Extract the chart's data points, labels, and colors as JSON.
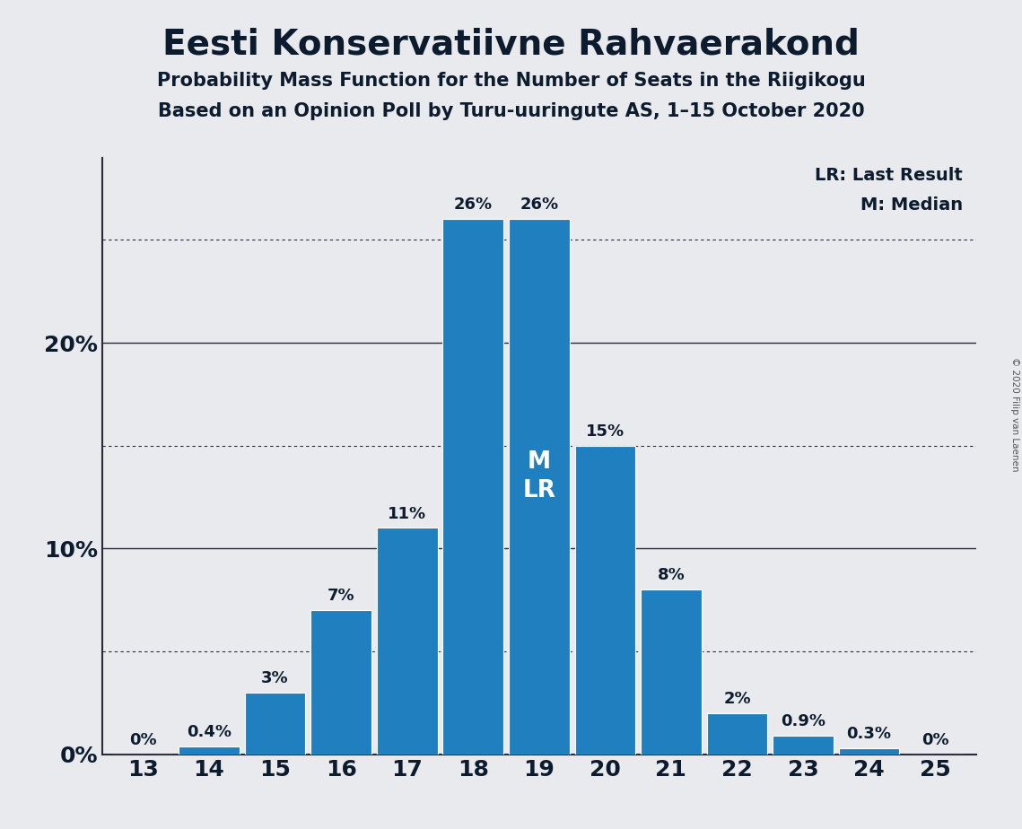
{
  "title": "Eesti Konservatiivne Rahvaerakond",
  "subtitle1": "Probability Mass Function for the Number of Seats in the Riigikogu",
  "subtitle2": "Based on an Opinion Poll by Turu-uuringute AS, 1–15 October 2020",
  "copyright": "© 2020 Filip van Laenen",
  "seats": [
    13,
    14,
    15,
    16,
    17,
    18,
    19,
    20,
    21,
    22,
    23,
    24,
    25
  ],
  "probabilities": [
    0.0,
    0.4,
    3.0,
    7.0,
    11.0,
    26.0,
    26.0,
    15.0,
    8.0,
    2.0,
    0.9,
    0.3,
    0.0
  ],
  "labels": [
    "0%",
    "0.4%",
    "3%",
    "7%",
    "11%",
    "26%",
    "26%",
    "15%",
    "8%",
    "2%",
    "0.9%",
    "0.3%",
    "0%"
  ],
  "bar_color": "#2080bf",
  "median_seat": 19,
  "last_result_seat": 19,
  "background_color": "#e8eaed",
  "ylim": [
    0,
    29
  ],
  "solid_gridlines": [
    10,
    20
  ],
  "dotted_gridlines": [
    5,
    15,
    25
  ],
  "ylabel_ticks": [
    0,
    10,
    20
  ],
  "legend_lr": "LR: Last Result",
  "legend_m": "M: Median"
}
